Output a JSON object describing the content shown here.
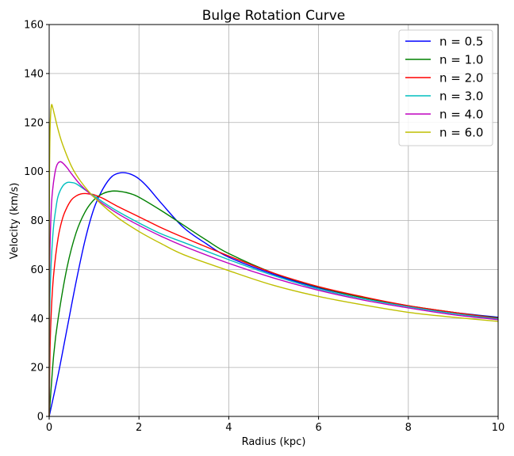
{
  "chart_data": {
    "type": "line",
    "title": "Bulge Rotation Curve",
    "xlabel": "Radius (kpc)",
    "ylabel": "Velocity (km/s)",
    "xlim": [
      0,
      10
    ],
    "ylim": [
      0,
      160
    ],
    "xticks": [
      "0",
      "2",
      "4",
      "6",
      "8",
      "10"
    ],
    "yticks": [
      "0",
      "20",
      "40",
      "60",
      "80",
      "100",
      "120",
      "140",
      "160"
    ],
    "grid": true,
    "legend_position": "top-right",
    "series": [
      {
        "name": "n = 0.5",
        "color": "#0000ff",
        "x": [
          0,
          0.2,
          0.4,
          0.6,
          0.8,
          1.0,
          1.2,
          1.4,
          1.6,
          1.8,
          2.0,
          2.2,
          2.5,
          3.0,
          3.5,
          4.0,
          5.0,
          6.0,
          7.0,
          8.0,
          9.0,
          10.0
        ],
        "y": [
          0,
          17,
          36,
          55,
          72,
          85,
          93,
          98,
          99.5,
          99,
          97,
          93.5,
          87,
          77,
          70.5,
          65,
          58,
          52.5,
          48.5,
          45,
          42.5,
          40.5
        ]
      },
      {
        "name": "n = 1.0",
        "color": "#008000",
        "x": [
          0,
          0.1,
          0.2,
          0.4,
          0.6,
          0.8,
          1.0,
          1.2,
          1.4,
          1.6,
          1.8,
          2.0,
          2.5,
          3.0,
          3.5,
          4.0,
          5.0,
          6.0,
          7.0,
          8.0,
          9.0,
          10.0
        ],
        "y": [
          0,
          25,
          40,
          61,
          75,
          83.5,
          88.5,
          91,
          92,
          91.8,
          91,
          89.5,
          84,
          78,
          72,
          66.5,
          58.5,
          52.8,
          48.5,
          45.2,
          42.5,
          40.2
        ]
      },
      {
        "name": "n = 2.0",
        "color": "#ff0000",
        "x": [
          0,
          0.02,
          0.05,
          0.1,
          0.2,
          0.3,
          0.4,
          0.5,
          0.6,
          0.7,
          0.8,
          0.9,
          1.0,
          1.2,
          1.5,
          2.0,
          2.5,
          3.0,
          4.0,
          5.0,
          6.0,
          7.0,
          8.0,
          9.0,
          10.0
        ],
        "y": [
          0,
          28,
          44,
          58,
          73,
          81,
          85.5,
          88.5,
          90,
          90.8,
          91,
          90.8,
          90.5,
          89,
          86,
          81.5,
          77,
          73,
          65.5,
          58.5,
          53,
          48.8,
          45.2,
          42.5,
          40
        ]
      },
      {
        "name": "n = 3.0",
        "color": "#00bfbf",
        "x": [
          0,
          0.01,
          0.03,
          0.06,
          0.1,
          0.15,
          0.2,
          0.3,
          0.4,
          0.5,
          0.6,
          0.8,
          1.0,
          1.2,
          1.5,
          2.0,
          2.5,
          3.0,
          4.0,
          5.0,
          6.0,
          7.0,
          8.0,
          9.0,
          10.0
        ],
        "y": [
          0,
          40,
          56,
          68,
          78,
          85,
          90,
          94,
          95.5,
          95.5,
          95,
          92.5,
          90,
          87.5,
          84,
          79,
          74.5,
          71,
          64,
          57.5,
          52,
          48,
          44.8,
          42,
          39.8
        ]
      },
      {
        "name": "n = 4.0",
        "color": "#bf00bf",
        "x": [
          0,
          0.005,
          0.02,
          0.05,
          0.08,
          0.12,
          0.16,
          0.2,
          0.25,
          0.3,
          0.4,
          0.5,
          0.7,
          1.0,
          1.3,
          1.6,
          2.0,
          2.5,
          3.0,
          4.0,
          5.0,
          6.0,
          7.0,
          8.0,
          9.0,
          10.0
        ],
        "y": [
          0,
          50,
          70,
          86,
          93,
          98.5,
          102,
          103.5,
          104,
          103.5,
          101.5,
          99,
          94.5,
          89.5,
          85.5,
          82,
          78,
          73.5,
          69.5,
          62.5,
          56.5,
          51.5,
          47.5,
          44.3,
          41.5,
          39.5
        ]
      },
      {
        "name": "n = 6.0",
        "color": "#bfbf00",
        "x": [
          0,
          0.003,
          0.01,
          0.025,
          0.05,
          0.08,
          0.12,
          0.2,
          0.3,
          0.5,
          0.7,
          1.0,
          1.5,
          2.0,
          2.5,
          3.0,
          4.0,
          5.0,
          6.0,
          7.0,
          8.0,
          9.0,
          10.0
        ],
        "y": [
          0,
          80,
          105,
          120,
          127,
          126,
          123,
          117,
          111,
          102,
          96,
          89.5,
          81.5,
          75.5,
          70.5,
          66,
          59.5,
          53.5,
          49,
          45.5,
          42.5,
          40.5,
          38.8
        ]
      }
    ]
  }
}
